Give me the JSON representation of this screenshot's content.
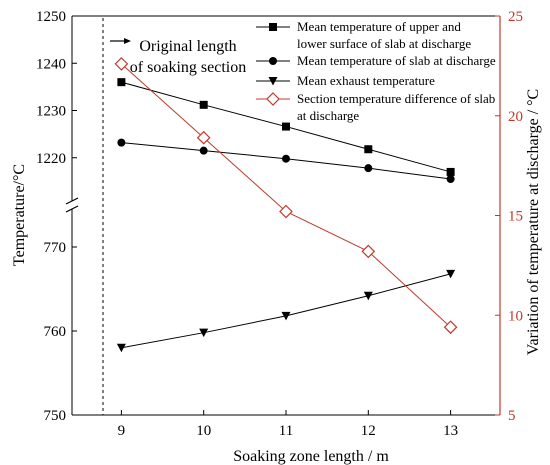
{
  "chart_data": {
    "type": "line",
    "x": [
      9,
      10,
      11,
      12,
      13
    ],
    "xlabel": "Soaking zone length / m",
    "ylabel_left": "Temperature/°C",
    "ylabel_right": "Variation of temperature at discharge / °C",
    "x_ticks": [
      9,
      10,
      11,
      12,
      13
    ],
    "xlim": [
      8.4,
      13.6
    ],
    "y_left_upper": {
      "ylim": [
        1210,
        1250
      ],
      "ticks": [
        1220,
        1230,
        1240,
        1250
      ]
    },
    "y_left_lower": {
      "ylim": [
        750,
        775
      ],
      "ticks": [
        750,
        760,
        770
      ]
    },
    "y_right": {
      "ylim": [
        5,
        25
      ],
      "ticks": [
        5,
        10,
        15,
        20,
        25
      ]
    },
    "axis_break": true,
    "grid": false,
    "legend_position": "top-right",
    "annotation": {
      "text_line1": "Original length",
      "text_line2": "of soaking section",
      "x": 9
    },
    "series": [
      {
        "name_line1": "Mean temperature of  upper and",
        "name_line2": "lower surface of slab at discharge",
        "axis": "left",
        "marker": "square",
        "color": "#000000",
        "values": [
          1236,
          1231.2,
          1226.6,
          1221.8,
          1217
        ]
      },
      {
        "name_line1": "Mean temperature of slab at discharge",
        "name_line2": "",
        "axis": "left",
        "marker": "circle",
        "color": "#000000",
        "values": [
          1223.2,
          1221.5,
          1219.8,
          1217.8,
          1215.5
        ]
      },
      {
        "name_line1": "Mean exhaust temperature",
        "name_line2": "",
        "axis": "left",
        "marker": "triangle-down",
        "color": "#000000",
        "values": [
          758,
          759.8,
          761.8,
          764.2,
          766.8
        ]
      },
      {
        "name_line1": "Section temperature difference of slab",
        "name_line2": "at discharge",
        "axis": "right",
        "marker": "diamond-open",
        "color": "#c0392b",
        "values": [
          22.6,
          18.9,
          15.2,
          13.2,
          9.4
        ]
      }
    ],
    "colors": {
      "axis_left": "#000000",
      "axis_right": "#c0392b"
    }
  }
}
